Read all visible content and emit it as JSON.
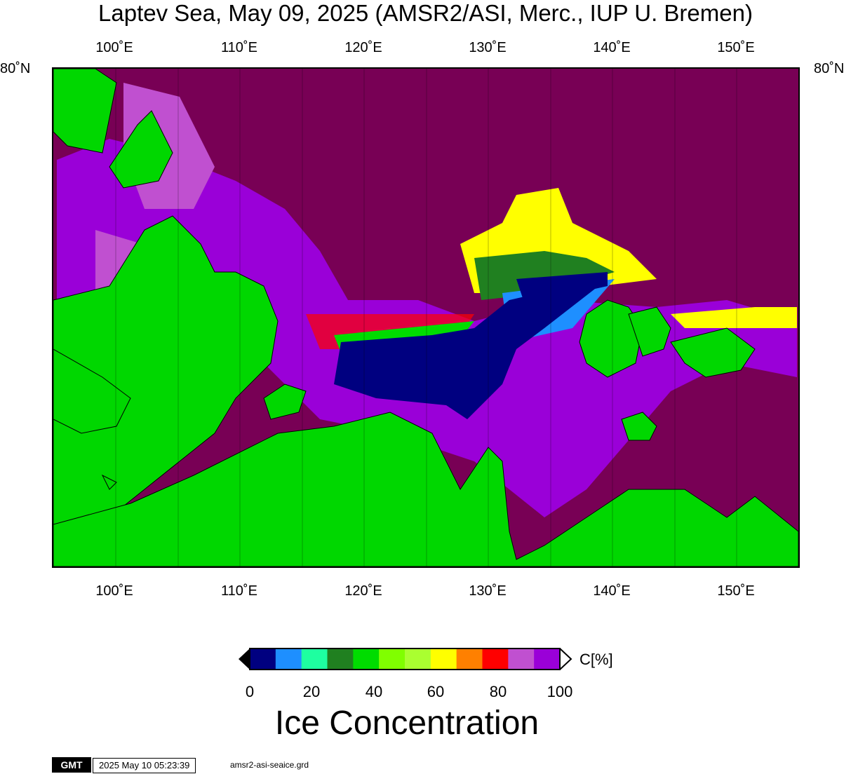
{
  "title": "Laptev Sea, May 09, 2025 (AMSR2/ASI, Merc., IUP U. Bremen)",
  "map": {
    "longitude_labels": [
      "100˚E",
      "110˚E",
      "120˚E",
      "130˚E",
      "140˚E",
      "150˚E"
    ],
    "latitude_label_left": "80˚N",
    "latitude_label_right": "80˚N",
    "colors": {
      "ocean_100": "#780055",
      "land": "#00d700",
      "ice_low": "#000080"
    }
  },
  "colorbar": {
    "unit": "C[%]",
    "title": "Ice Concentration",
    "tick_labels": [
      "0",
      "20",
      "40",
      "60",
      "80",
      "100"
    ],
    "colors": [
      "#000080",
      "#1e8fff",
      "#1effa0",
      "#208020",
      "#00dc00",
      "#80ff00",
      "#aaff30",
      "#ffff00",
      "#ff8000",
      "#ff0000",
      "#c050d0",
      "#9a00d8"
    ]
  },
  "footer": {
    "logo": "GMT",
    "timestamp": "2025 May 10 05:23:39",
    "source_file": "amsr2-asi-seaice.grd"
  }
}
